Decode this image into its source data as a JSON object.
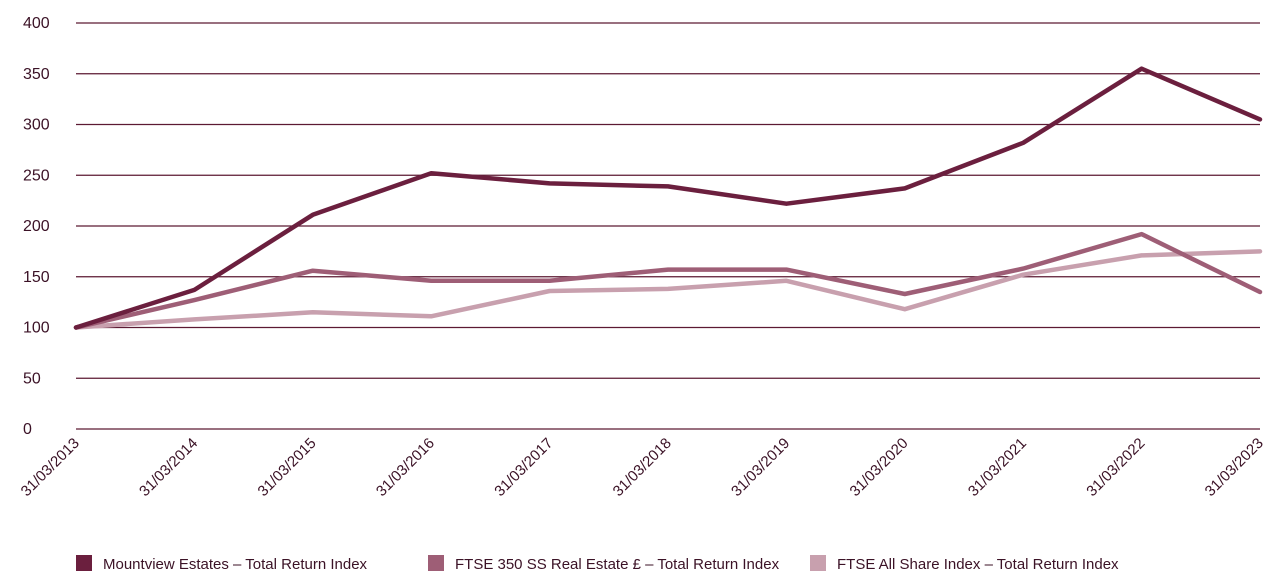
{
  "chart_data": {
    "type": "line",
    "title": "",
    "xlabel": "",
    "ylabel": "",
    "ylim": [
      0,
      400
    ],
    "yticks": [
      "0",
      "50",
      "100",
      "150",
      "200",
      "250",
      "300",
      "350",
      "400"
    ],
    "categories": [
      "31/03/2013",
      "31/03/2014",
      "31/03/2015",
      "31/03/2016",
      "31/03/2017",
      "31/03/2018",
      "31/03/2019",
      "31/03/2020",
      "31/03/2021",
      "31/03/2022",
      "31/03/2023"
    ],
    "grid": true,
    "legend_position": "bottom",
    "series": [
      {
        "name": "Mountview Estates – Total Return Index",
        "color": "#6b1f3e",
        "values": [
          100,
          137,
          211,
          252,
          242,
          239,
          222,
          237,
          282,
          355,
          305
        ]
      },
      {
        "name": "FTSE 350 SS Real Estate £ – Total Return Index",
        "color": "#9e5e76",
        "values": [
          100,
          127,
          156,
          146,
          146,
          157,
          157,
          133,
          158,
          192,
          135
        ]
      },
      {
        "name": "FTSE All Share Index – Total Return Index",
        "color": "#c8a0ae",
        "values": [
          100,
          108,
          115,
          111,
          136,
          138,
          146,
          118,
          152,
          171,
          175
        ]
      }
    ]
  }
}
